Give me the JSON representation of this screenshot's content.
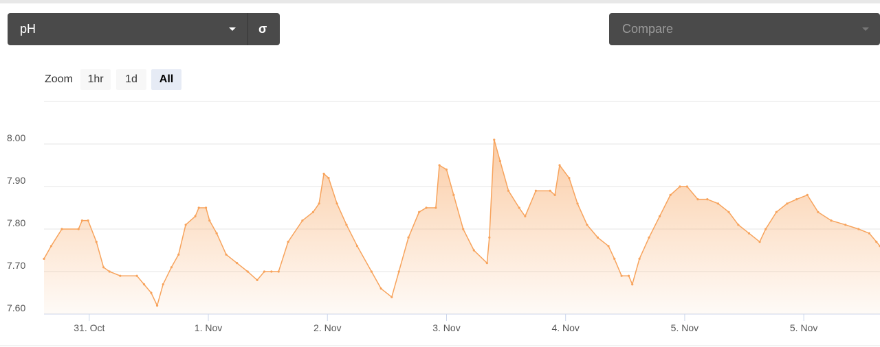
{
  "controls": {
    "metric": "pH",
    "sigma": "σ",
    "compare": "Compare",
    "zoom_label": "Zoom",
    "zoom_buttons": [
      "1hr",
      "1d",
      "All"
    ]
  },
  "chart_data": {
    "type": "area",
    "color": "#f7a35c",
    "grid": true,
    "xlim": [
      -0.38,
      6.64
    ],
    "xticks": [
      {
        "value": 0,
        "label": "31. Oct"
      },
      {
        "value": 1,
        "label": "1. Nov"
      },
      {
        "value": 2,
        "label": "2. Nov"
      },
      {
        "value": 3,
        "label": "3. Nov"
      },
      {
        "value": 4,
        "label": "4. Nov"
      },
      {
        "value": 5,
        "label": "5. Nov"
      },
      {
        "value": 6,
        "label": "5. Nov"
      }
    ],
    "ylim": [
      7.6,
      8.1
    ],
    "yticks": [
      {
        "value": 7.6,
        "label": "7.60"
      },
      {
        "value": 7.7,
        "label": "7.70"
      },
      {
        "value": 7.8,
        "label": "7.80"
      },
      {
        "value": 7.9,
        "label": "7.90"
      },
      {
        "value": 8.0,
        "label": "8.00"
      }
    ],
    "x": [
      -0.38,
      -0.32,
      -0.23,
      -0.09,
      -0.06,
      -0.01,
      0.06,
      0.12,
      0.17,
      0.26,
      0.4,
      0.46,
      0.52,
      0.57,
      0.62,
      0.69,
      0.75,
      0.81,
      0.89,
      0.92,
      0.98,
      1.01,
      1.07,
      1.15,
      1.24,
      1.33,
      1.41,
      1.47,
      1.53,
      1.59,
      1.67,
      1.79,
      1.88,
      1.93,
      1.97,
      2.01,
      2.08,
      2.16,
      2.25,
      2.37,
      2.45,
      2.54,
      2.6,
      2.68,
      2.77,
      2.83,
      2.91,
      2.94,
      3.0,
      3.06,
      3.14,
      3.23,
      3.34,
      3.36,
      3.4,
      3.45,
      3.52,
      3.61,
      3.66,
      3.75,
      3.87,
      3.91,
      3.95,
      4.03,
      4.1,
      4.18,
      4.27,
      4.36,
      4.41,
      4.47,
      4.53,
      4.56,
      4.62,
      4.7,
      4.79,
      4.88,
      4.96,
      5.02,
      5.11,
      5.19,
      5.28,
      5.37,
      5.45,
      5.54,
      5.63,
      5.68,
      5.77,
      5.86,
      5.94,
      6.03,
      6.12,
      6.23,
      6.35,
      6.46,
      6.55,
      6.61,
      6.64
    ],
    "values": [
      7.73,
      7.76,
      7.8,
      7.8,
      7.82,
      7.82,
      7.77,
      7.71,
      7.7,
      7.69,
      7.69,
      7.67,
      7.65,
      7.62,
      7.67,
      7.71,
      7.74,
      7.81,
      7.83,
      7.85,
      7.85,
      7.82,
      7.79,
      7.74,
      7.72,
      7.7,
      7.68,
      7.7,
      7.7,
      7.7,
      7.77,
      7.82,
      7.84,
      7.86,
      7.93,
      7.92,
      7.86,
      7.81,
      7.76,
      7.7,
      7.66,
      7.64,
      7.7,
      7.78,
      7.84,
      7.85,
      7.85,
      7.95,
      7.94,
      7.88,
      7.8,
      7.75,
      7.72,
      7.78,
      8.01,
      7.96,
      7.89,
      7.85,
      7.83,
      7.89,
      7.89,
      7.88,
      7.95,
      7.92,
      7.86,
      7.81,
      7.78,
      7.76,
      7.73,
      7.69,
      7.69,
      7.67,
      7.73,
      7.78,
      7.83,
      7.88,
      7.9,
      7.9,
      7.87,
      7.87,
      7.86,
      7.84,
      7.81,
      7.79,
      7.77,
      7.8,
      7.84,
      7.86,
      7.87,
      7.88,
      7.84,
      7.82,
      7.81,
      7.8,
      7.79,
      7.77,
      7.76
    ]
  }
}
